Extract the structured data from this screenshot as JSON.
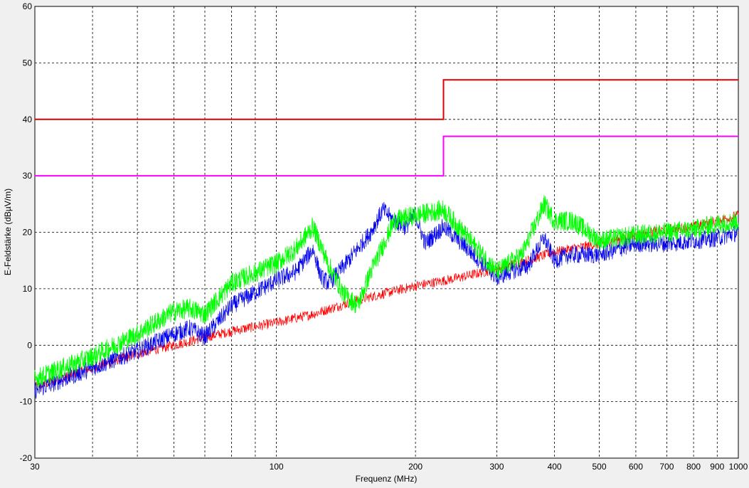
{
  "chart_data": {
    "type": "line",
    "title": "",
    "xlabel": "Frequenz (MHz)",
    "ylabel": "E-Feldstärke (dBµV/m)",
    "xscale": "log",
    "xlim": [
      30,
      1000
    ],
    "ylim": [
      -20,
      60
    ],
    "grid": true,
    "x_ticks": [
      30,
      100,
      200,
      300,
      400,
      500,
      600,
      700,
      800,
      900,
      1000
    ],
    "x_tick_labels": [
      "30",
      "100",
      "200",
      "300",
      "400",
      "500",
      "600",
      "700",
      "800",
      "900",
      "1000"
    ],
    "y_ticks": [
      -20,
      -10,
      0,
      10,
      20,
      30,
      40,
      50,
      60
    ],
    "y_tick_labels": [
      "-20",
      "-10",
      "0",
      "10",
      "20",
      "30",
      "40",
      "50",
      "60"
    ],
    "colors": {
      "limit_1": "#e00000",
      "limit_2": "#ff00ff",
      "noise_red": "#ff0000",
      "noise_blue": "#0000ee",
      "noise_green": "#00ff00",
      "background": "#f0f0f0",
      "plot_area": "#ffffff"
    },
    "series": [
      {
        "x": [
          30,
          230,
          230,
          1000
        ],
        "y": [
          40,
          40,
          47,
          47
        ]
      },
      {
        "x": [
          30,
          230,
          230,
          1000
        ],
        "y": [
          30,
          30,
          37,
          37
        ]
      },
      {
        "x": [
          30,
          40,
          50,
          60,
          80,
          100,
          120,
          150,
          200,
          250,
          300,
          350,
          400,
          500,
          600,
          700,
          800,
          900,
          1000
        ],
        "y": [
          -7.5,
          -4,
          -1.5,
          0,
          2.5,
          4,
          5.5,
          8,
          10.5,
          12,
          13.5,
          15,
          16.5,
          18,
          19.5,
          20.5,
          21,
          22,
          23
        ]
      },
      {
        "x": [
          30,
          40,
          50,
          60,
          65,
          70,
          80,
          100,
          110,
          120,
          125,
          130,
          140,
          160,
          170,
          180,
          190,
          200,
          210,
          230,
          260,
          300,
          320,
          350,
          380,
          400,
          430,
          500,
          600,
          700,
          800,
          900,
          1000
        ],
        "y": [
          -8,
          -4,
          -1,
          2,
          3,
          1.5,
          7,
          11.5,
          13,
          17,
          12,
          11,
          14,
          20,
          24,
          22,
          21,
          23,
          18,
          21,
          17,
          12,
          13,
          14,
          19,
          15,
          16,
          16,
          18,
          18,
          18.5,
          19,
          20
        ]
      },
      {
        "x": [
          30,
          40,
          50,
          60,
          65,
          70,
          80,
          100,
          110,
          120,
          130,
          140,
          150,
          160,
          180,
          200,
          230,
          260,
          300,
          340,
          380,
          400,
          440,
          500,
          600,
          700,
          800,
          900,
          1000
        ],
        "y": [
          -6,
          -2,
          2,
          6,
          6.5,
          5.5,
          11,
          14.5,
          17,
          21,
          14,
          9,
          7,
          13,
          22,
          23,
          24,
          19,
          13,
          16,
          25,
          22,
          22,
          18.5,
          19.5,
          20,
          20.5,
          21.5,
          22
        ]
      }
    ]
  }
}
